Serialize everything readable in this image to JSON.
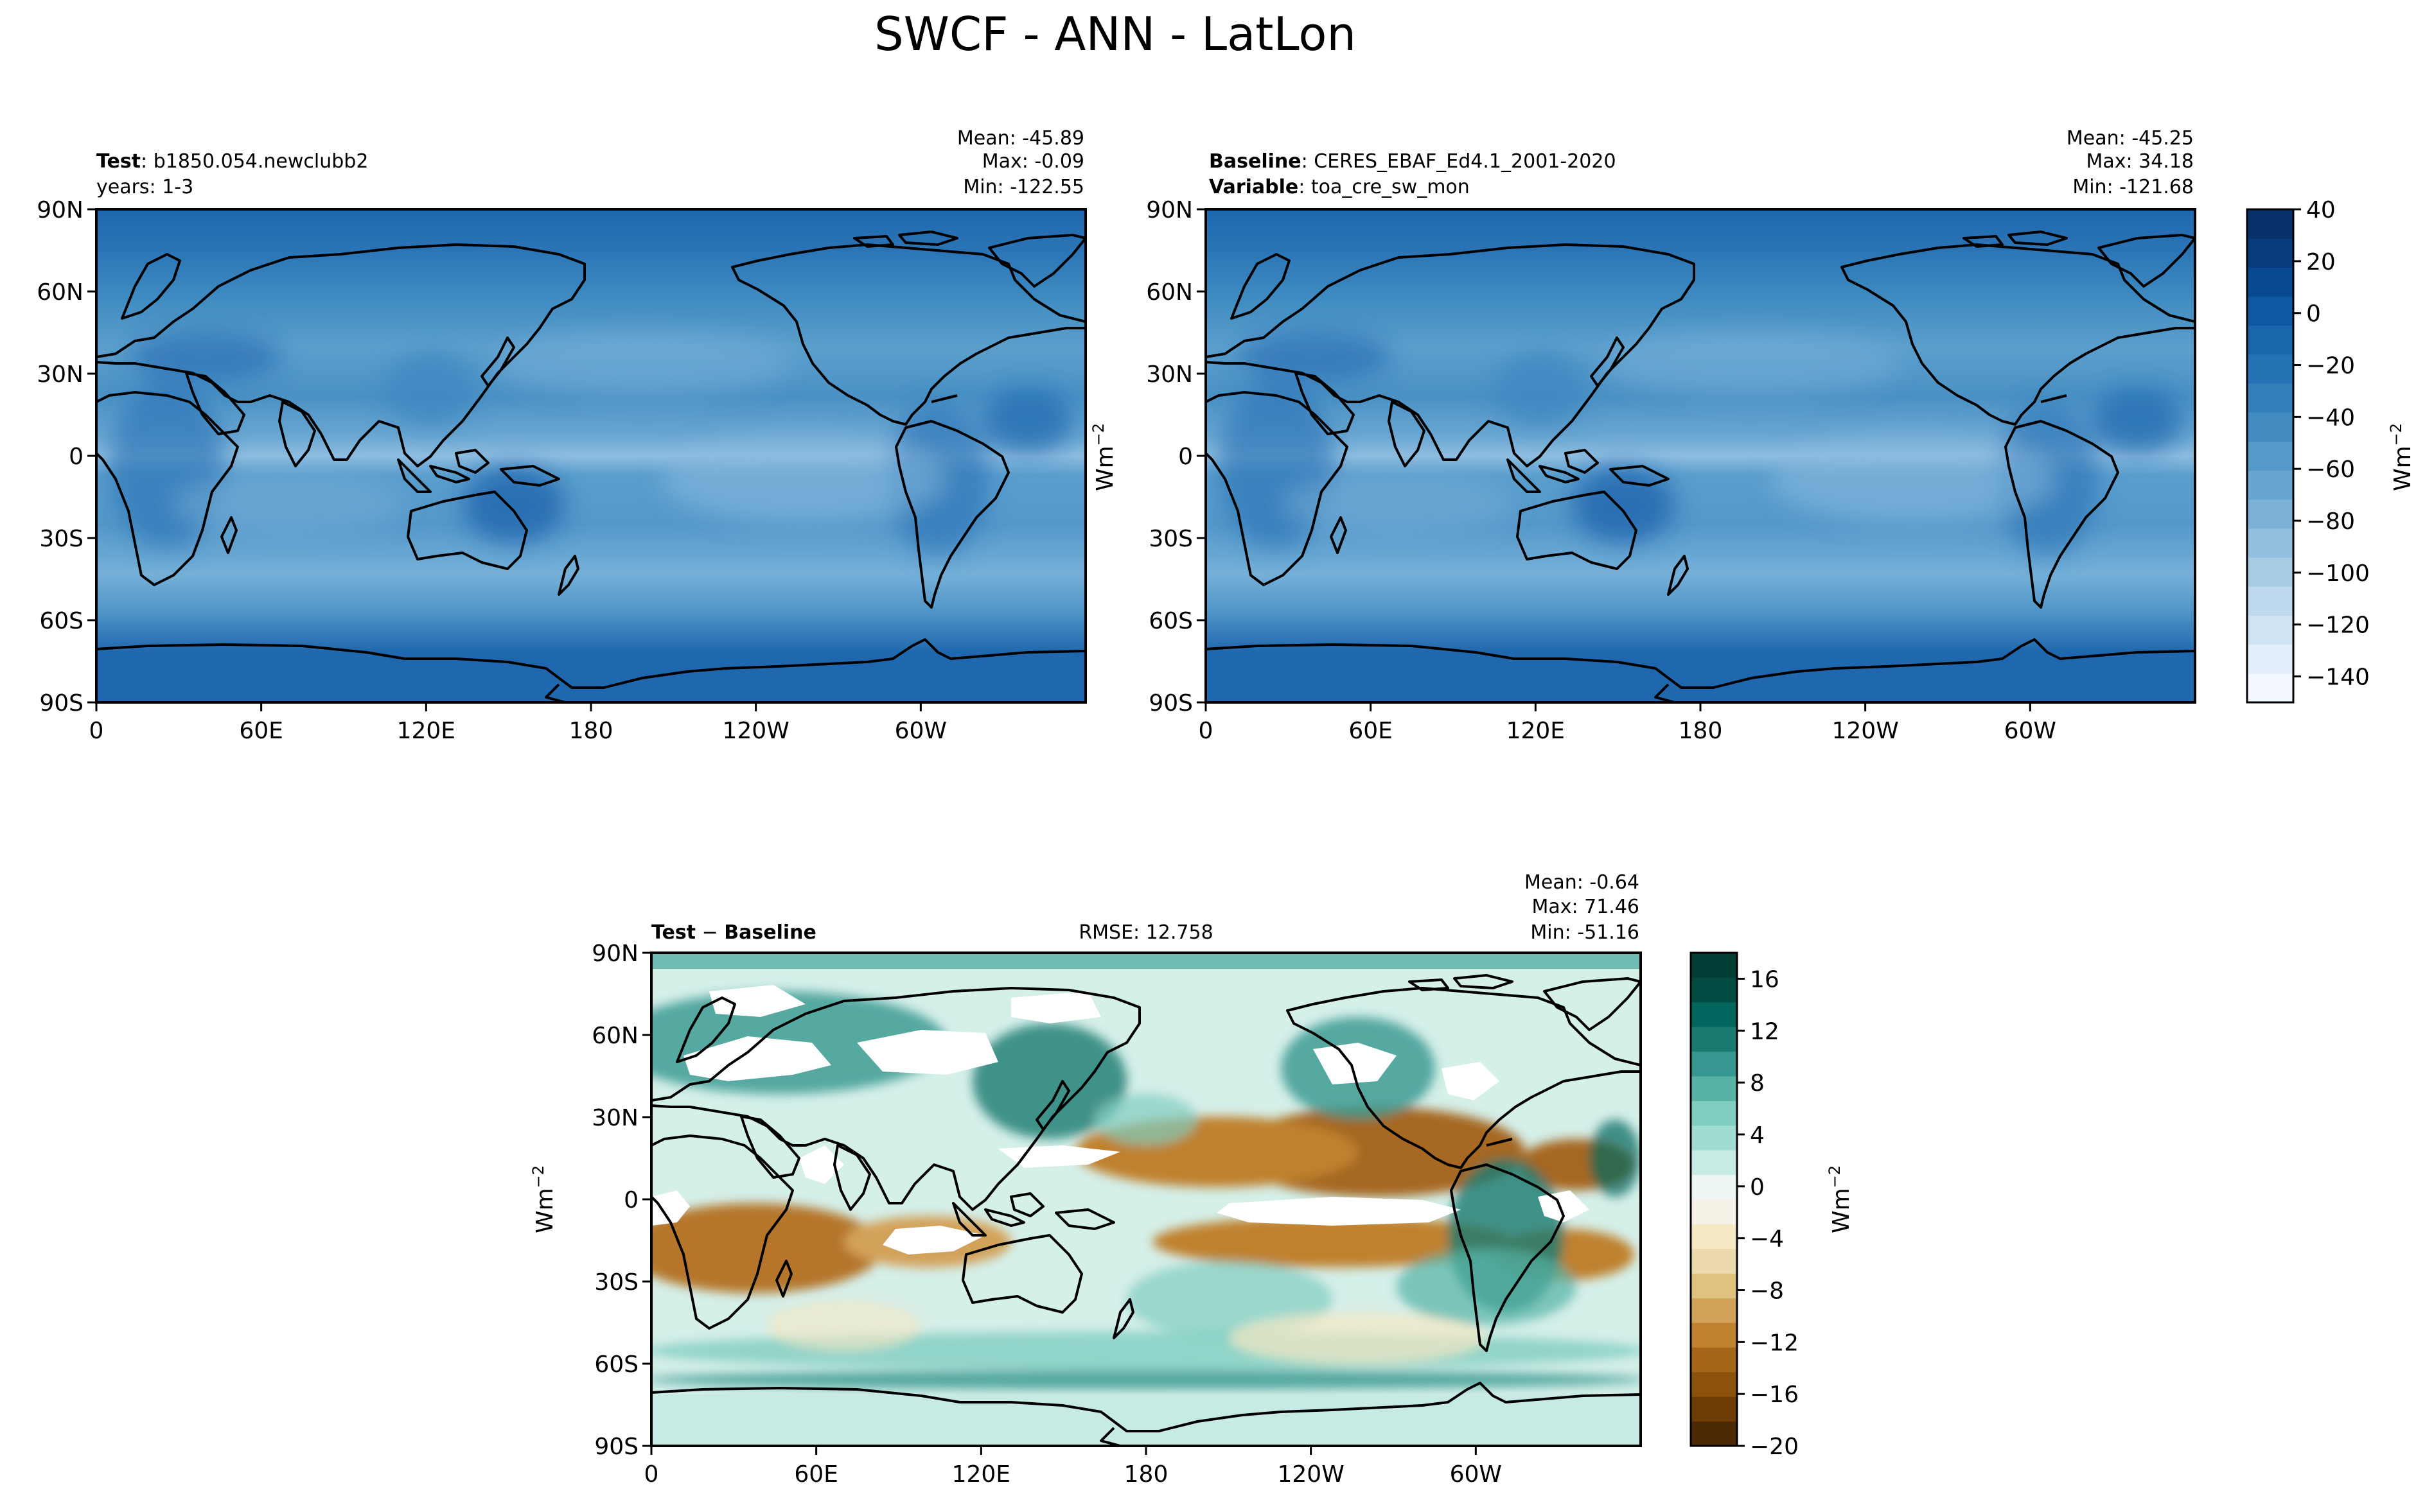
{
  "figure": {
    "title": "SWCF - ANN - LatLon"
  },
  "chart_data": [
    {
      "type": "heatmap",
      "panel": "test",
      "label_key": "Test",
      "label_value": "b1850.054.newclubb2",
      "line2": "years: 1-3",
      "stats": {
        "mean": "Mean: -45.89",
        "max": "Max: -0.09",
        "min": "Min: -122.55"
      },
      "x_ticks": [
        "0",
        "60E",
        "120E",
        "180",
        "120W",
        "60W"
      ],
      "y_ticks": [
        "90N",
        "60N",
        "30N",
        "0",
        "30S",
        "60S",
        "90S"
      ],
      "xlim": [
        0,
        360
      ],
      "ylim": [
        -90,
        90
      ]
    },
    {
      "type": "heatmap",
      "panel": "baseline",
      "label_key": "Baseline",
      "label_value": "CERES_EBAF_Ed4.1_2001-2020",
      "line2_key": "Variable",
      "line2_value": "toa_cre_sw_mon",
      "stats": {
        "mean": "Mean: -45.25",
        "max": "Max: 34.18",
        "min": "Min: -121.68"
      },
      "x_ticks": [
        "0",
        "60E",
        "120E",
        "180",
        "120W",
        "60W"
      ],
      "y_ticks": [
        "90N",
        "60N",
        "30N",
        "0",
        "30S",
        "60S",
        "90S"
      ],
      "ylabel": "Wm",
      "ylabel_sup": "−2",
      "xlim": [
        0,
        360
      ],
      "ylim": [
        -90,
        90
      ],
      "colorbar": {
        "ticks": [
          "40",
          "20",
          "0",
          "−20",
          "−40",
          "−60",
          "−80",
          "−100",
          "−120",
          "−140"
        ],
        "label": "Wm",
        "label_sup": "−2",
        "range": [
          -150,
          40
        ]
      }
    },
    {
      "type": "heatmap",
      "panel": "difference",
      "label_key": "Test",
      "label_op": " − ",
      "label_key2": "Baseline",
      "rmse": "RMSE: 12.758",
      "stats": {
        "mean": "Mean: -0.64",
        "max": "Max: 71.46",
        "min": "Min: -51.16"
      },
      "x_ticks": [
        "0",
        "60E",
        "120E",
        "180",
        "120W",
        "60W"
      ],
      "y_ticks": [
        "90N",
        "60N",
        "30N",
        "0",
        "30S",
        "60S",
        "90S"
      ],
      "ylabel": "Wm",
      "ylabel_sup": "−2",
      "xlim": [
        0,
        360
      ],
      "ylim": [
        -90,
        90
      ],
      "colorbar": {
        "ticks": [
          "16",
          "12",
          "8",
          "4",
          "0",
          "−4",
          "−8",
          "−12",
          "−16",
          "−20"
        ],
        "label": "Wm",
        "label_sup": "−2",
        "range": [
          -20,
          18
        ]
      }
    }
  ],
  "colors": {
    "blues": [
      "#f2f8fd",
      "#e2eef9",
      "#d0e3f3",
      "#bed8ed",
      "#a9cde6",
      "#93c0df",
      "#7db2d8",
      "#68a6d1",
      "#5599c9",
      "#428cc1",
      "#3380bb",
      "#2573b4",
      "#1966ad",
      "#0e58a2",
      "#084a92",
      "#083b7c",
      "#08306b"
    ],
    "brbg": [
      "#4d2a05",
      "#6e3d06",
      "#8c510a",
      "#a5661a",
      "#bf812d",
      "#d3a25a",
      "#dfc27d",
      "#ecd9ad",
      "#f6e8c3",
      "#f6f1e6",
      "#eef6f4",
      "#c7eae5",
      "#a0dcd2",
      "#80cdc1",
      "#56b2a5",
      "#35978f",
      "#1a7a71",
      "#01665e",
      "#024b43",
      "#013d35"
    ]
  }
}
